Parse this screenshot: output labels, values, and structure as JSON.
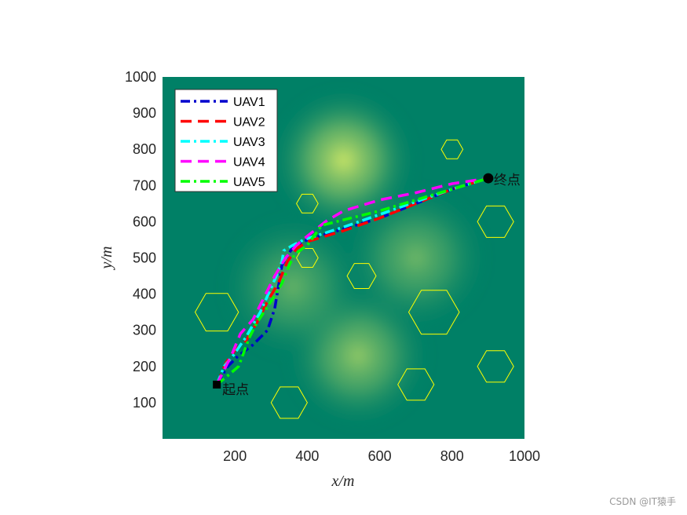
{
  "chart_data": {
    "type": "line",
    "title": "",
    "xlabel": "x/m",
    "ylabel": "y/m",
    "xlim": [
      0,
      1000
    ],
    "ylim": [
      0,
      1000
    ],
    "xticks": [
      200,
      400,
      600,
      800,
      1000
    ],
    "yticks": [
      100,
      200,
      300,
      400,
      500,
      600,
      700,
      800,
      900,
      1000
    ],
    "grid": false,
    "legend_position": "top-left",
    "background_colormap": "summer",
    "terrain_peaks": [
      {
        "x": 500,
        "y": 770,
        "level": 1.0
      },
      {
        "x": 540,
        "y": 230,
        "level": 0.72
      },
      {
        "x": 700,
        "y": 500,
        "level": 0.55
      },
      {
        "x": 360,
        "y": 420,
        "level": 0.5
      }
    ],
    "obstacles": [
      {
        "cx": 800,
        "cy": 800,
        "r": 30
      },
      {
        "cx": 400,
        "cy": 650,
        "r": 30
      },
      {
        "cx": 920,
        "cy": 600,
        "r": 50
      },
      {
        "cx": 400,
        "cy": 500,
        "r": 30
      },
      {
        "cx": 550,
        "cy": 450,
        "r": 40
      },
      {
        "cx": 150,
        "cy": 350,
        "r": 60
      },
      {
        "cx": 750,
        "cy": 350,
        "r": 70
      },
      {
        "cx": 920,
        "cy": 200,
        "r": 50
      },
      {
        "cx": 700,
        "cy": 150,
        "r": 50
      },
      {
        "cx": 350,
        "cy": 100,
        "r": 50
      }
    ],
    "obstacle_color": "#ffff00",
    "start": {
      "x": 150,
      "y": 150,
      "label": "起点"
    },
    "end": {
      "x": 900,
      "y": 720,
      "label": "终点"
    },
    "series": [
      {
        "name": "UAV1",
        "color": "#0000cd",
        "dash": "dashdot",
        "x": [
          150,
          180,
          210,
          250,
          290,
          310,
          330,
          360,
          400,
          500,
          600,
          700,
          800,
          900
        ],
        "y": [
          150,
          200,
          230,
          260,
          300,
          360,
          480,
          530,
          550,
          580,
          610,
          650,
          690,
          720
        ]
      },
      {
        "name": "UAV2",
        "color": "#ff0000",
        "dash": "dashed",
        "x": [
          150,
          175,
          200,
          230,
          260,
          290,
          320,
          345,
          370,
          400,
          500,
          600,
          700,
          800,
          900
        ],
        "y": [
          150,
          210,
          245,
          270,
          320,
          380,
          430,
          490,
          525,
          545,
          575,
          610,
          650,
          690,
          720
        ]
      },
      {
        "name": "UAV3",
        "color": "#00ffff",
        "dash": "dashdot",
        "x": [
          150,
          170,
          195,
          230,
          270,
          310,
          330,
          335,
          360,
          390,
          500,
          600,
          700,
          800,
          900
        ],
        "y": [
          150,
          200,
          230,
          280,
          350,
          440,
          490,
          520,
          535,
          550,
          585,
          620,
          655,
          690,
          720
        ]
      },
      {
        "name": "UAV4",
        "color": "#ff00ff",
        "dash": "dashed",
        "x": [
          150,
          190,
          215,
          250,
          280,
          310,
          340,
          370,
          400,
          450,
          500,
          600,
          700,
          800,
          900
        ],
        "y": [
          150,
          230,
          290,
          330,
          390,
          450,
          500,
          535,
          560,
          600,
          630,
          660,
          680,
          705,
          720
        ]
      },
      {
        "name": "UAV5",
        "color": "#00ff00",
        "dash": "dashdot",
        "x": [
          150,
          175,
          210,
          240,
          260,
          300,
          330,
          350,
          365,
          400,
          440,
          500,
          600,
          700,
          800,
          900
        ],
        "y": [
          150,
          170,
          200,
          280,
          320,
          380,
          430,
          480,
          510,
          535,
          590,
          605,
          630,
          660,
          690,
          720
        ]
      }
    ]
  },
  "watermark": "CSDN @IT猿手"
}
